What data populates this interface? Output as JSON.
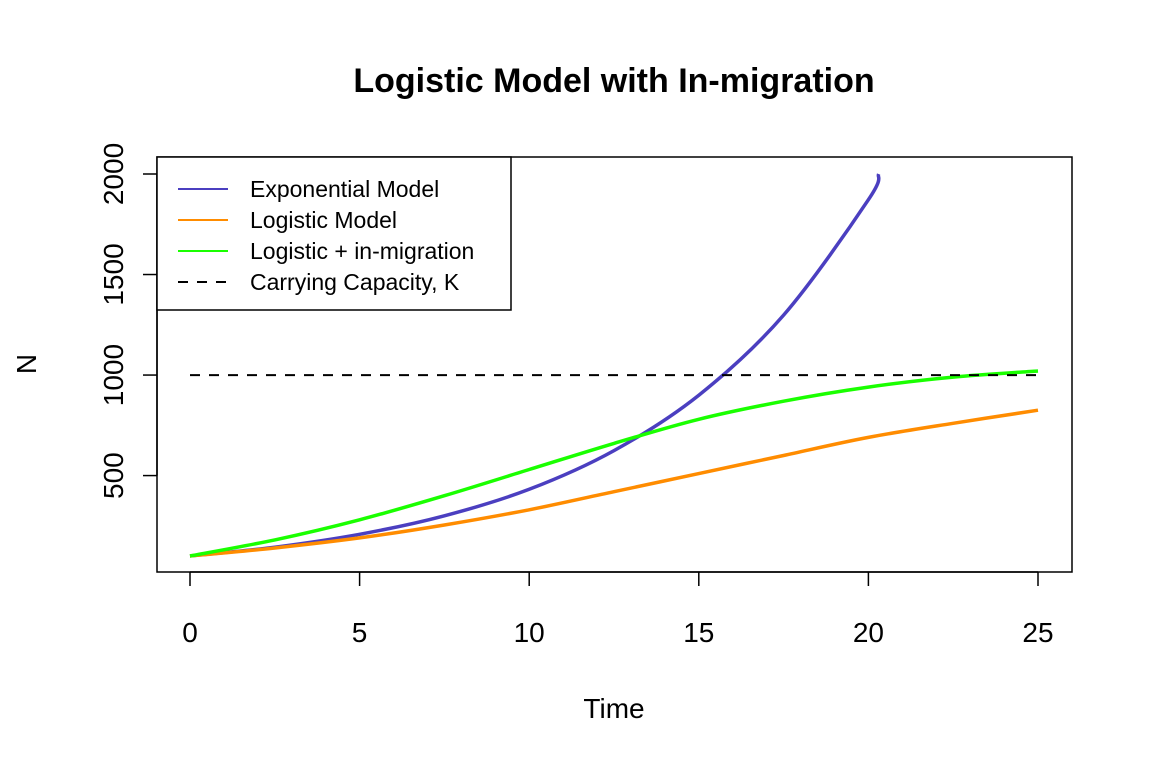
{
  "chart_data": {
    "type": "line",
    "title": "Logistic Model with In-migration",
    "xlabel": "Time",
    "ylabel": "N",
    "xlim": [
      0,
      25
    ],
    "ylim": [
      100,
      2000
    ],
    "x_ticks": [
      0,
      5,
      10,
      15,
      20,
      25
    ],
    "y_ticks": [
      500,
      1000,
      1500,
      2000
    ],
    "x_tick_labels": [
      "0",
      "5",
      "10",
      "15",
      "20",
      "25"
    ],
    "y_tick_labels": [
      "500",
      "1000",
      "1500",
      "2000"
    ],
    "grid": false,
    "legend_position": "top-left",
    "series": [
      {
        "name": "Exponential Model",
        "color": "#4b3fc0",
        "style": "solid",
        "x": [
          0,
          2.5,
          5,
          7.5,
          10,
          12.5,
          15,
          17.5,
          20,
          20.3
        ],
        "y": [
          100,
          144,
          208,
          300,
          432,
          624,
          900,
          1298,
          1872,
          2000
        ]
      },
      {
        "name": "Logistic Model",
        "color": "#ff8c00",
        "style": "solid",
        "x": [
          0,
          2.5,
          5,
          7.5,
          10,
          12.5,
          15,
          17.5,
          20,
          22.5,
          25
        ],
        "y": [
          100,
          140,
          190,
          254,
          330,
          420,
          510,
          600,
          690,
          760,
          825
        ]
      },
      {
        "name": "Logistic + in-migration",
        "color": "#1aff00",
        "style": "solid",
        "x": [
          0,
          2.5,
          5,
          7.5,
          10,
          12.5,
          15,
          17.5,
          20,
          22.5,
          25
        ],
        "y": [
          100,
          180,
          280,
          400,
          530,
          660,
          780,
          870,
          940,
          990,
          1020
        ]
      },
      {
        "name": "Carrying Capacity, K",
        "color": "#000000",
        "style": "dashed",
        "x": [
          0,
          25
        ],
        "y": [
          1000,
          1000
        ]
      }
    ]
  }
}
